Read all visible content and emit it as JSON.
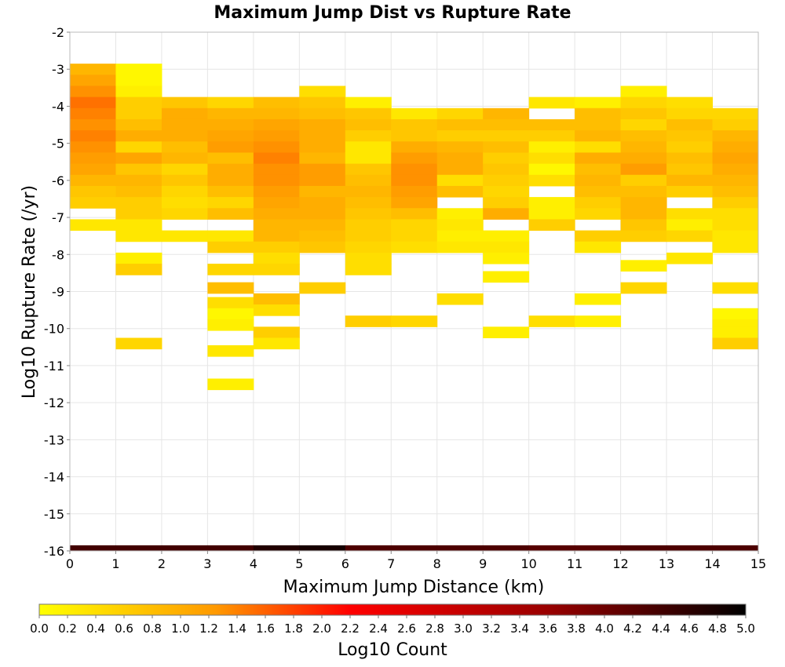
{
  "chart_data": {
    "type": "heatmap",
    "title": "Maximum Jump Dist vs Rupture Rate",
    "xlabel": "Maximum Jump Distance (km)",
    "ylabel": "Log10 Rupture Rate (/yr)",
    "xlim": [
      0,
      15
    ],
    "ylim": [
      -16,
      -2
    ],
    "x_ticks": [
      "0",
      "1",
      "2",
      "3",
      "4",
      "5",
      "6",
      "7",
      "8",
      "9",
      "10",
      "11",
      "12",
      "13",
      "14",
      "15"
    ],
    "y_ticks": [
      "-2",
      "-3",
      "-4",
      "-5",
      "-6",
      "-7",
      "-8",
      "-9",
      "-10",
      "-11",
      "-12",
      "-13",
      "-14",
      "-15",
      "-16"
    ],
    "grid": true,
    "x_bin_width": 1,
    "y_bin_height": 0.3,
    "cells": [
      [
        0,
        -3.0,
        0.9
      ],
      [
        0,
        -3.3,
        1.1
      ],
      [
        0,
        -3.6,
        1.3
      ],
      [
        0,
        -3.9,
        1.5
      ],
      [
        0,
        -4.2,
        1.4
      ],
      [
        0,
        -4.5,
        1.3
      ],
      [
        0,
        -4.8,
        1.4
      ],
      [
        0,
        -5.1,
        1.3
      ],
      [
        0,
        -5.4,
        1.2
      ],
      [
        0,
        -5.7,
        1.1
      ],
      [
        0,
        -6.0,
        0.9
      ],
      [
        0,
        -6.3,
        0.7
      ],
      [
        0,
        -6.6,
        0.6
      ],
      [
        0,
        -7.2,
        0.3
      ],
      [
        1,
        -3.0,
        0.1
      ],
      [
        1,
        -3.3,
        0.1
      ],
      [
        1,
        -3.6,
        0.2
      ],
      [
        1,
        -3.9,
        0.6
      ],
      [
        1,
        -4.2,
        0.6
      ],
      [
        1,
        -4.5,
        0.8
      ],
      [
        1,
        -4.8,
        1.0
      ],
      [
        1,
        -5.1,
        0.5
      ],
      [
        1,
        -5.4,
        1.1
      ],
      [
        1,
        -5.7,
        0.7
      ],
      [
        1,
        -6.0,
        0.9
      ],
      [
        1,
        -6.3,
        0.8
      ],
      [
        1,
        -6.6,
        0.6
      ],
      [
        1,
        -6.9,
        0.6
      ],
      [
        1,
        -7.2,
        0.3
      ],
      [
        1,
        -7.5,
        0.3
      ],
      [
        1,
        -8.1,
        0.2
      ],
      [
        1,
        -8.4,
        0.6
      ],
      [
        1,
        -10.4,
        0.5
      ],
      [
        2,
        -3.9,
        0.7
      ],
      [
        2,
        -4.2,
        1.0
      ],
      [
        2,
        -4.5,
        1.0
      ],
      [
        2,
        -4.8,
        1.0
      ],
      [
        2,
        -5.1,
        0.8
      ],
      [
        2,
        -5.4,
        0.9
      ],
      [
        2,
        -5.7,
        0.5
      ],
      [
        2,
        -6.0,
        0.7
      ],
      [
        2,
        -6.3,
        0.5
      ],
      [
        2,
        -6.6,
        0.4
      ],
      [
        2,
        -6.9,
        0.5
      ],
      [
        2,
        -7.5,
        0.3
      ],
      [
        3,
        -3.9,
        0.5
      ],
      [
        3,
        -4.2,
        0.9
      ],
      [
        3,
        -4.5,
        1.0
      ],
      [
        3,
        -4.8,
        1.1
      ],
      [
        3,
        -5.1,
        1.2
      ],
      [
        3,
        -5.4,
        0.8
      ],
      [
        3,
        -5.7,
        1.0
      ],
      [
        3,
        -6.0,
        1.0
      ],
      [
        3,
        -6.3,
        0.8
      ],
      [
        3,
        -6.6,
        0.5
      ],
      [
        3,
        -6.9,
        0.8
      ],
      [
        3,
        -7.5,
        0.3
      ],
      [
        3,
        -7.8,
        0.6
      ],
      [
        3,
        -8.4,
        0.5
      ],
      [
        3,
        -8.9,
        0.8
      ],
      [
        3,
        -9.3,
        0.4
      ],
      [
        3,
        -9.6,
        0.1
      ],
      [
        3,
        -9.9,
        0.2
      ],
      [
        3,
        -10.6,
        0.3
      ],
      [
        3,
        -11.5,
        0.2
      ],
      [
        4,
        -3.9,
        0.8
      ],
      [
        4,
        -4.2,
        0.9
      ],
      [
        4,
        -4.5,
        1.1
      ],
      [
        4,
        -4.8,
        1.2
      ],
      [
        4,
        -5.1,
        1.3
      ],
      [
        4,
        -5.4,
        1.4
      ],
      [
        4,
        -5.7,
        1.3
      ],
      [
        4,
        -6.0,
        1.3
      ],
      [
        4,
        -6.3,
        1.2
      ],
      [
        4,
        -6.6,
        1.1
      ],
      [
        4,
        -6.9,
        1.0
      ],
      [
        4,
        -7.2,
        0.9
      ],
      [
        4,
        -7.5,
        0.9
      ],
      [
        4,
        -7.8,
        0.6
      ],
      [
        4,
        -8.1,
        0.4
      ],
      [
        4,
        -8.4,
        0.5
      ],
      [
        4,
        -9.2,
        0.8
      ],
      [
        4,
        -9.5,
        0.4
      ],
      [
        4,
        -10.1,
        0.6
      ],
      [
        4,
        -10.4,
        0.3
      ],
      [
        5,
        -3.6,
        0.4
      ],
      [
        5,
        -3.9,
        0.7
      ],
      [
        5,
        -4.2,
        0.8
      ],
      [
        5,
        -4.5,
        1.0
      ],
      [
        5,
        -4.8,
        1.0
      ],
      [
        5,
        -5.1,
        1.0
      ],
      [
        5,
        -5.4,
        0.9
      ],
      [
        5,
        -5.7,
        1.2
      ],
      [
        5,
        -6.0,
        1.2
      ],
      [
        5,
        -6.3,
        0.9
      ],
      [
        5,
        -6.6,
        1.0
      ],
      [
        5,
        -6.9,
        1.0
      ],
      [
        5,
        -7.2,
        0.9
      ],
      [
        5,
        -7.5,
        0.8
      ],
      [
        5,
        -7.8,
        0.7
      ],
      [
        5,
        -8.9,
        0.6
      ],
      [
        6,
        -3.9,
        0.2
      ],
      [
        6,
        -4.2,
        0.7
      ],
      [
        6,
        -4.5,
        0.8
      ],
      [
        6,
        -4.8,
        0.6
      ],
      [
        6,
        -5.1,
        0.3
      ],
      [
        6,
        -5.4,
        0.3
      ],
      [
        6,
        -5.7,
        0.7
      ],
      [
        6,
        -6.0,
        0.8
      ],
      [
        6,
        -6.3,
        0.9
      ],
      [
        6,
        -6.6,
        0.8
      ],
      [
        6,
        -6.9,
        0.7
      ],
      [
        6,
        -7.2,
        0.6
      ],
      [
        6,
        -7.5,
        0.6
      ],
      [
        6,
        -7.8,
        0.5
      ],
      [
        6,
        -8.1,
        0.4
      ],
      [
        6,
        -8.4,
        0.4
      ],
      [
        6,
        -9.8,
        0.6
      ],
      [
        7,
        -4.2,
        0.3
      ],
      [
        7,
        -4.5,
        0.7
      ],
      [
        7,
        -4.8,
        0.7
      ],
      [
        7,
        -5.1,
        1.0
      ],
      [
        7,
        -5.4,
        1.2
      ],
      [
        7,
        -5.7,
        1.3
      ],
      [
        7,
        -6.0,
        1.3
      ],
      [
        7,
        -6.3,
        1.2
      ],
      [
        7,
        -6.6,
        1.1
      ],
      [
        7,
        -6.9,
        0.8
      ],
      [
        7,
        -7.2,
        0.5
      ],
      [
        7,
        -7.5,
        0.5
      ],
      [
        7,
        -7.8,
        0.4
      ],
      [
        7,
        -9.8,
        0.5
      ],
      [
        8,
        -4.2,
        0.5
      ],
      [
        8,
        -4.5,
        0.8
      ],
      [
        8,
        -4.8,
        0.6
      ],
      [
        8,
        -5.1,
        0.9
      ],
      [
        8,
        -5.4,
        1.0
      ],
      [
        8,
        -5.7,
        1.0
      ],
      [
        8,
        -6.0,
        0.4
      ],
      [
        8,
        -6.3,
        0.8
      ],
      [
        8,
        -6.9,
        0.2
      ],
      [
        8,
        -7.2,
        0.3
      ],
      [
        8,
        -7.5,
        0.2
      ],
      [
        8,
        -7.8,
        0.3
      ],
      [
        8,
        -9.2,
        0.4
      ],
      [
        9,
        -4.2,
        0.9
      ],
      [
        9,
        -4.5,
        0.8
      ],
      [
        9,
        -4.8,
        0.6
      ],
      [
        9,
        -5.1,
        0.8
      ],
      [
        9,
        -5.4,
        0.6
      ],
      [
        9,
        -5.7,
        0.7
      ],
      [
        9,
        -6.0,
        0.6
      ],
      [
        9,
        -6.3,
        0.5
      ],
      [
        9,
        -6.6,
        0.6
      ],
      [
        9,
        -6.9,
        1.0
      ],
      [
        9,
        -7.5,
        0.2
      ],
      [
        9,
        -7.8,
        0.3
      ],
      [
        9,
        -8.1,
        0.2
      ],
      [
        9,
        -8.6,
        0.2
      ],
      [
        9,
        -10.1,
        0.2
      ],
      [
        10,
        -3.9,
        0.3
      ],
      [
        10,
        -4.5,
        0.8
      ],
      [
        10,
        -4.8,
        0.6
      ],
      [
        10,
        -5.1,
        0.2
      ],
      [
        10,
        -5.4,
        0.4
      ],
      [
        10,
        -5.7,
        0.1
      ],
      [
        10,
        -6.0,
        0.4
      ],
      [
        10,
        -6.6,
        0.2
      ],
      [
        10,
        -6.9,
        0.2
      ],
      [
        10,
        -7.2,
        0.6
      ],
      [
        10,
        -9.8,
        0.4
      ],
      [
        11,
        -3.9,
        0.2
      ],
      [
        11,
        -4.2,
        0.8
      ],
      [
        11,
        -4.5,
        0.8
      ],
      [
        11,
        -4.8,
        0.9
      ],
      [
        11,
        -5.1,
        0.4
      ],
      [
        11,
        -5.4,
        1.0
      ],
      [
        11,
        -5.7,
        0.8
      ],
      [
        11,
        -6.0,
        0.9
      ],
      [
        11,
        -6.3,
        0.8
      ],
      [
        11,
        -6.6,
        0.6
      ],
      [
        11,
        -6.9,
        0.5
      ],
      [
        11,
        -7.5,
        0.6
      ],
      [
        11,
        -7.8,
        0.3
      ],
      [
        11,
        -9.2,
        0.2
      ],
      [
        11,
        -9.8,
        0.2
      ],
      [
        12,
        -3.6,
        0.2
      ],
      [
        12,
        -3.9,
        0.5
      ],
      [
        12,
        -4.2,
        0.7
      ],
      [
        12,
        -4.5,
        0.5
      ],
      [
        12,
        -4.8,
        0.8
      ],
      [
        12,
        -5.1,
        0.9
      ],
      [
        12,
        -5.4,
        1.0
      ],
      [
        12,
        -5.7,
        1.2
      ],
      [
        12,
        -6.0,
        0.6
      ],
      [
        12,
        -6.3,
        0.8
      ],
      [
        12,
        -6.6,
        0.9
      ],
      [
        12,
        -6.9,
        0.9
      ],
      [
        12,
        -7.2,
        0.7
      ],
      [
        12,
        -7.5,
        0.6
      ],
      [
        12,
        -8.3,
        0.2
      ],
      [
        12,
        -8.9,
        0.5
      ],
      [
        13,
        -3.9,
        0.4
      ],
      [
        13,
        -4.2,
        0.5
      ],
      [
        13,
        -4.5,
        0.8
      ],
      [
        13,
        -4.8,
        0.7
      ],
      [
        13,
        -5.1,
        0.6
      ],
      [
        13,
        -5.4,
        0.8
      ],
      [
        13,
        -5.7,
        0.7
      ],
      [
        13,
        -6.0,
        0.9
      ],
      [
        13,
        -6.3,
        0.6
      ],
      [
        13,
        -6.9,
        0.4
      ],
      [
        13,
        -7.2,
        0.2
      ],
      [
        13,
        -7.5,
        0.5
      ],
      [
        13,
        -8.1,
        0.3
      ],
      [
        14,
        -4.2,
        0.5
      ],
      [
        14,
        -4.5,
        0.6
      ],
      [
        14,
        -4.8,
        0.9
      ],
      [
        14,
        -5.1,
        1.0
      ],
      [
        14,
        -5.4,
        1.1
      ],
      [
        14,
        -5.7,
        1.0
      ],
      [
        14,
        -6.0,
        0.9
      ],
      [
        14,
        -6.3,
        0.8
      ],
      [
        14,
        -6.6,
        0.6
      ],
      [
        14,
        -6.9,
        0.4
      ],
      [
        14,
        -7.2,
        0.4
      ],
      [
        14,
        -7.5,
        0.3
      ],
      [
        14,
        -7.8,
        0.3
      ],
      [
        14,
        -8.9,
        0.4
      ],
      [
        14,
        -9.6,
        0.1
      ],
      [
        14,
        -9.9,
        0.2
      ],
      [
        14,
        -10.1,
        0.2
      ],
      [
        14,
        -10.4,
        0.6
      ]
    ],
    "bottom_row": {
      "y": -16.0,
      "values": [
        4.4,
        4.4,
        4.4,
        4.4,
        4.7,
        4.8,
        4.3,
        4.3,
        4.3,
        4.3,
        4.2,
        4.2,
        4.3,
        4.3,
        4.3
      ]
    },
    "colorbar": {
      "label": "Log10 Count",
      "min": 0.0,
      "max": 5.0,
      "ticks": [
        "0.0",
        "0.2",
        "0.4",
        "0.6",
        "0.8",
        "1.0",
        "1.2",
        "1.4",
        "1.6",
        "1.8",
        "2.0",
        "2.2",
        "2.4",
        "2.6",
        "2.8",
        "3.0",
        "3.2",
        "3.4",
        "3.6",
        "3.8",
        "4.0",
        "4.2",
        "4.4",
        "4.6",
        "4.8",
        "5.0"
      ],
      "colors": [
        "#ffff00",
        "#ff9900",
        "#ff0000",
        "#990000",
        "#000000"
      ]
    }
  }
}
